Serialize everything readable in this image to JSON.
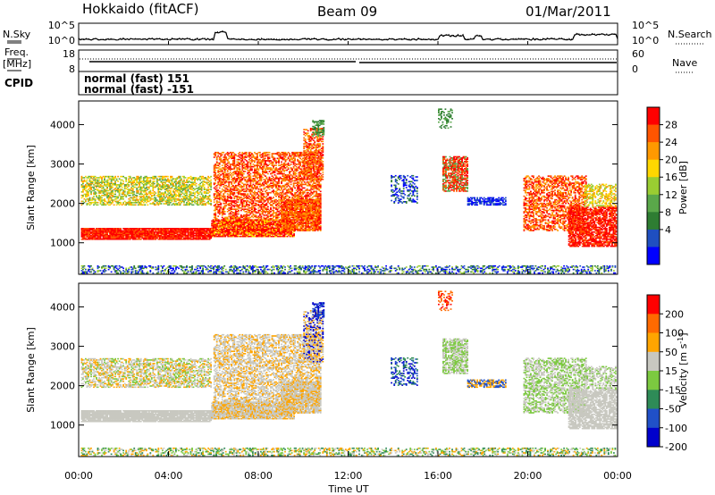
{
  "header": {
    "title": "Hokkaido (fitACF)",
    "beam": "Beam 09",
    "date": "01/Mar/2011"
  },
  "top_panels": {
    "nsky": {
      "left_label": "N.Sky",
      "right_label": "N.Search",
      "left_ticks": [
        "10^5",
        "10^0"
      ],
      "right_ticks": [
        "10^5",
        "10^0"
      ]
    },
    "freq": {
      "left_label_1": "Freq.",
      "left_label_2": "[MHz]",
      "right_label": "Nave",
      "left_ticks": [
        "18",
        "8"
      ],
      "right_ticks": [
        "60",
        "0"
      ]
    },
    "cpid": {
      "label": "CPID",
      "lines": [
        "normal (fast) 151",
        "normal (fast) -151"
      ]
    }
  },
  "colors": {
    "power_scale": [
      "#0000ff",
      "#1f4fc0",
      "#2e7d32",
      "#5aa84a",
      "#9acd32",
      "#ffd700",
      "#ff9900",
      "#ff5500",
      "#ff0000"
    ],
    "velocity_scale": [
      "#0000cc",
      "#2050c8",
      "#2e8b57",
      "#7cc940",
      "#c8c8c0",
      "#ffa500",
      "#ff6a00",
      "#ff0000"
    ]
  },
  "chart_data": [
    {
      "type": "heatmap",
      "title": "",
      "ylabel": "Slant Range [km]",
      "xlabel": "",
      "x_range": [
        "00:00",
        "24:00"
      ],
      "ylim": [
        200,
        4600
      ],
      "yticks": [
        "1000",
        "2000",
        "3000",
        "4000"
      ],
      "colorbar": {
        "label": "Power [dB]",
        "ticks": [
          "4",
          "8",
          "12",
          "16",
          "20",
          "24",
          "28"
        ]
      }
    },
    {
      "type": "heatmap",
      "title": "",
      "ylabel": "Slant Range [km]",
      "xlabel": "Time UT",
      "x_range": [
        "00:00",
        "24:00"
      ],
      "ylim": [
        200,
        4600
      ],
      "yticks": [
        "1000",
        "2000",
        "3000",
        "4000"
      ],
      "xticks": [
        "00:00",
        "04:00",
        "08:00",
        "12:00",
        "16:00",
        "20:00",
        "00:00"
      ],
      "colorbar": {
        "label": "Velocity [m s",
        "label_sup": "-1",
        "label_end": "]",
        "ticks": [
          "200",
          "100",
          "50",
          "15",
          "-15",
          "-50",
          "-100",
          "-200"
        ]
      }
    }
  ]
}
